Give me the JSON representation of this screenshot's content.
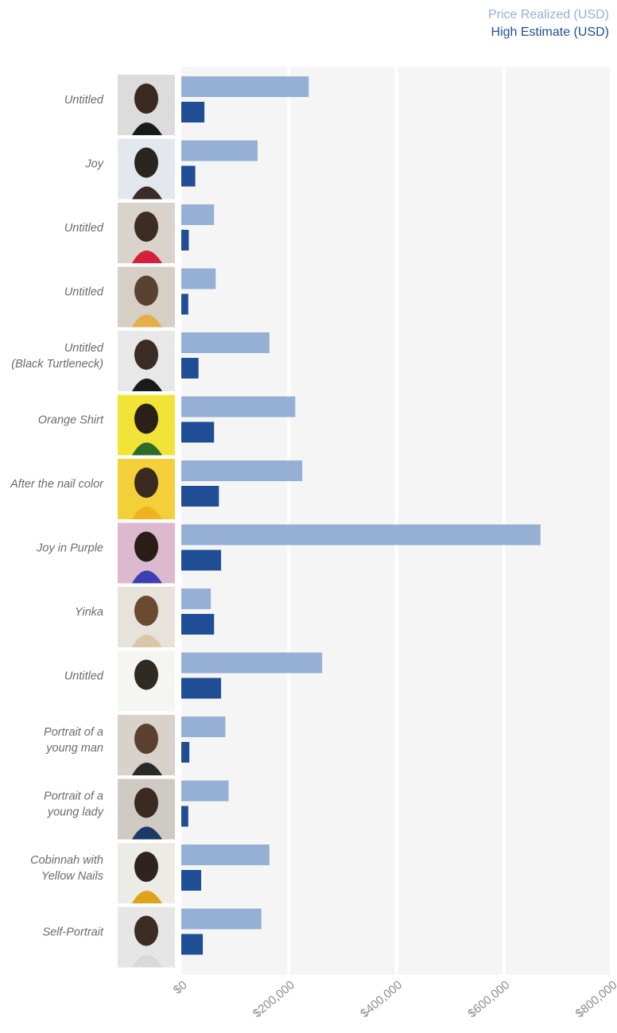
{
  "chart_data": {
    "type": "bar",
    "orientation": "horizontal",
    "title": "",
    "xlabel": "",
    "ylabel": "",
    "xlim": [
      0,
      800000
    ],
    "x_ticks": [
      0,
      200000,
      400000,
      600000,
      800000
    ],
    "x_tick_labels": [
      "$0",
      "$200,000",
      "$400,000",
      "$600,000",
      "$800,000"
    ],
    "grid": true,
    "legend_position": "top-right",
    "categories": [
      [
        "Untitled"
      ],
      [
        "Joy"
      ],
      [
        "Untitled"
      ],
      [
        "Untitled"
      ],
      [
        "Untitled",
        "(Black Turtleneck)"
      ],
      [
        "Orange Shirt"
      ],
      [
        "After the nail color"
      ],
      [
        "Joy in Purple"
      ],
      [
        "Yinka"
      ],
      [
        "Untitled"
      ],
      [
        "Portrait of a",
        "young man"
      ],
      [
        "Portrait of a",
        "young lady"
      ],
      [
        "Cobinnah with",
        "Yellow Nails"
      ],
      [
        "Self-Portrait"
      ]
    ],
    "series": [
      {
        "name": "Price Realized (USD)",
        "color": "#95b0d4",
        "values": [
          237000,
          142000,
          61000,
          64000,
          164000,
          212000,
          225000,
          668000,
          55000,
          262000,
          82000,
          88000,
          164000,
          149000
        ]
      },
      {
        "name": "High Estimate (USD)",
        "color": "#1f4e94",
        "values": [
          43000,
          26000,
          14000,
          13000,
          32000,
          61000,
          70000,
          74000,
          61000,
          74000,
          15000,
          13000,
          37000,
          40000
        ]
      }
    ],
    "thumbnails": [
      {
        "bg": "#dcdcdc",
        "skin": "#3a2a22",
        "cloth": "#1a1a1a"
      },
      {
        "bg": "#e3e8ee",
        "skin": "#2b2520",
        "cloth": "#3a2a2a"
      },
      {
        "bg": "#d9d3cc",
        "skin": "#3d2c22",
        "cloth": "#d4203a"
      },
      {
        "bg": "#d6cfc6",
        "skin": "#5a4232",
        "cloth": "#e2b04a"
      },
      {
        "bg": "#e8e8e8",
        "skin": "#3a2c24",
        "cloth": "#1a1a1a"
      },
      {
        "bg": "#f2e436",
        "skin": "#2a2018",
        "cloth": "#2e6b2a"
      },
      {
        "bg": "#f3cf3a",
        "skin": "#3a2a20",
        "cloth": "#f0b21e"
      },
      {
        "bg": "#dcb9cf",
        "skin": "#2a1d18",
        "cloth": "#3b3fb3"
      },
      {
        "bg": "#e7e2da",
        "skin": "#6a4a30",
        "cloth": "#d9c7a8"
      },
      {
        "bg": "#f5f5f2",
        "skin": "#2f2a22",
        "cloth": "#f5f5f2"
      },
      {
        "bg": "#d8d2cb",
        "skin": "#5a4030",
        "cloth": "#2a2a2a"
      },
      {
        "bg": "#cfcac4",
        "skin": "#3a2a22",
        "cloth": "#1d3a66"
      },
      {
        "bg": "#ecebe6",
        "skin": "#2e241d",
        "cloth": "#e0a21a"
      },
      {
        "bg": "#e6e6e6",
        "skin": "#3b2d24",
        "cloth": "#d9d9d9"
      }
    ]
  }
}
